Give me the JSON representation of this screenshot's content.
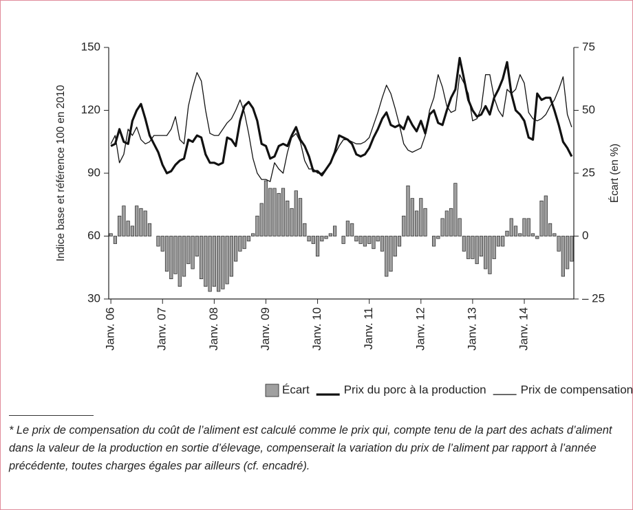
{
  "chart_data": {
    "type": "combo",
    "y_label": "Indice base et référence 100 en 2010",
    "y2_label": "Écart (en %)",
    "categories": [
      "Janv. 06",
      null,
      null,
      null,
      null,
      null,
      null,
      null,
      null,
      null,
      null,
      null,
      "Janv. 07",
      null,
      null,
      null,
      null,
      null,
      null,
      null,
      null,
      null,
      null,
      null,
      "Janv. 08",
      null,
      null,
      null,
      null,
      null,
      null,
      null,
      null,
      null,
      null,
      null,
      "Janv. 09",
      null,
      null,
      null,
      null,
      null,
      null,
      null,
      null,
      null,
      null,
      null,
      "Janv. 10",
      null,
      null,
      null,
      null,
      null,
      null,
      null,
      null,
      null,
      null,
      null,
      "Janv. 11",
      null,
      null,
      null,
      null,
      null,
      null,
      null,
      null,
      null,
      null,
      null,
      "Janv. 12",
      null,
      null,
      null,
      null,
      null,
      null,
      null,
      null,
      null,
      null,
      null,
      "Janv. 13",
      null,
      null,
      null,
      null,
      null,
      null,
      null,
      null,
      null,
      null,
      null,
      "Janv. 14",
      null,
      null,
      null,
      null,
      null,
      null,
      null,
      null,
      null,
      null,
      null
    ],
    "ylim": [
      30,
      150
    ],
    "yticks": [
      30,
      60,
      90,
      120,
      150
    ],
    "y2lim": [
      -25,
      75
    ],
    "y2ticks": [
      {
        "value": -25,
        "label": "– 25"
      },
      0,
      25,
      50,
      75
    ],
    "series": [
      {
        "name": "Écart",
        "type": "bar",
        "axis": "y2",
        "color": "#a0a0a0",
        "values": [
          1,
          -3,
          8,
          12,
          6,
          4,
          12,
          11,
          10,
          5,
          0,
          -4,
          -6,
          -14,
          -17,
          -15,
          -20,
          -16,
          -11,
          -13,
          -8,
          -17,
          -20,
          -22,
          -20,
          -22,
          -21,
          -19,
          -16,
          -10,
          -6,
          -5,
          -2,
          1,
          8,
          13,
          22,
          19,
          19,
          17,
          19,
          14,
          11,
          18,
          15,
          5,
          -2,
          -3,
          -8,
          -2,
          -1,
          1,
          4,
          0,
          -3,
          6,
          5,
          -2,
          -3,
          -4,
          -3,
          -5,
          -2,
          -6,
          -16,
          -14,
          -8,
          -4,
          8,
          20,
          15,
          10,
          15,
          11,
          0,
          -4,
          -1,
          7,
          10,
          11,
          21,
          7,
          -6,
          -9,
          -9,
          -11,
          -8,
          -13,
          -15,
          -9,
          -4,
          -4,
          2,
          7,
          4,
          1,
          7,
          7,
          1,
          -1,
          14,
          16,
          5,
          1,
          -6,
          -16,
          -13,
          -10
        ]
      },
      {
        "name": "Prix du porc à la production",
        "type": "line",
        "axis": "y",
        "color": "#111",
        "width": 3.2,
        "values": [
          103,
          104,
          111,
          105,
          104,
          115,
          120,
          123,
          116,
          108,
          104,
          100,
          94,
          90,
          91,
          94,
          96,
          97,
          106,
          105,
          108,
          107,
          99,
          95,
          95,
          94,
          95,
          107,
          106,
          103,
          115,
          122,
          124,
          121,
          115,
          104,
          103,
          97,
          98,
          103,
          104,
          103,
          108,
          112,
          106,
          103,
          98,
          91,
          91,
          89,
          92,
          95,
          100,
          108,
          107,
          106,
          104,
          99,
          98,
          99,
          102,
          107,
          111,
          116,
          119,
          113,
          112,
          113,
          111,
          117,
          113,
          110,
          115,
          109,
          118,
          120,
          114,
          113,
          120,
          126,
          130,
          145,
          135,
          125,
          120,
          117,
          118,
          122,
          118,
          126,
          130,
          135,
          143,
          128,
          120,
          118,
          115,
          107,
          106,
          128,
          125,
          126,
          126,
          120,
          113,
          105,
          102,
          98
        ]
      },
      {
        "name": "Prix de compensation du coût de l’aliment*",
        "type": "line",
        "axis": "y",
        "color": "#111",
        "width": 1.3,
        "values": [
          104,
          108,
          95,
          99,
          111,
          108,
          112,
          106,
          104,
          105,
          108,
          108,
          108,
          108,
          111,
          117,
          106,
          104,
          122,
          131,
          138,
          134,
          120,
          109,
          108,
          108,
          111,
          114,
          116,
          120,
          125,
          119,
          109,
          97,
          90,
          87,
          87,
          86,
          95,
          92,
          90,
          100,
          107,
          109,
          105,
          96,
          92,
          92,
          90,
          90,
          92,
          95,
          99,
          103,
          106,
          106,
          105,
          104,
          104,
          105,
          107,
          113,
          119,
          126,
          132,
          128,
          121,
          113,
          104,
          101,
          100,
          101,
          102,
          108,
          120,
          126,
          137,
          131,
          122,
          119,
          120,
          137,
          133,
          128,
          115,
          116,
          121,
          137,
          137,
          126,
          120,
          117,
          130,
          128,
          130,
          137,
          133,
          119,
          116,
          115,
          116,
          118,
          122,
          125,
          130,
          136,
          118,
          112
        ]
      }
    ]
  },
  "footnote": "* Le prix de compensation du coût de l’aliment est calculé comme le prix qui, compte tenu de la part des achats d’aliment dans la valeur de la production en sortie d’élevage, compenserait la variation du prix de l’aliment par rapport à l’année précédente, toutes charges égales par ailleurs (cf. encadré)."
}
